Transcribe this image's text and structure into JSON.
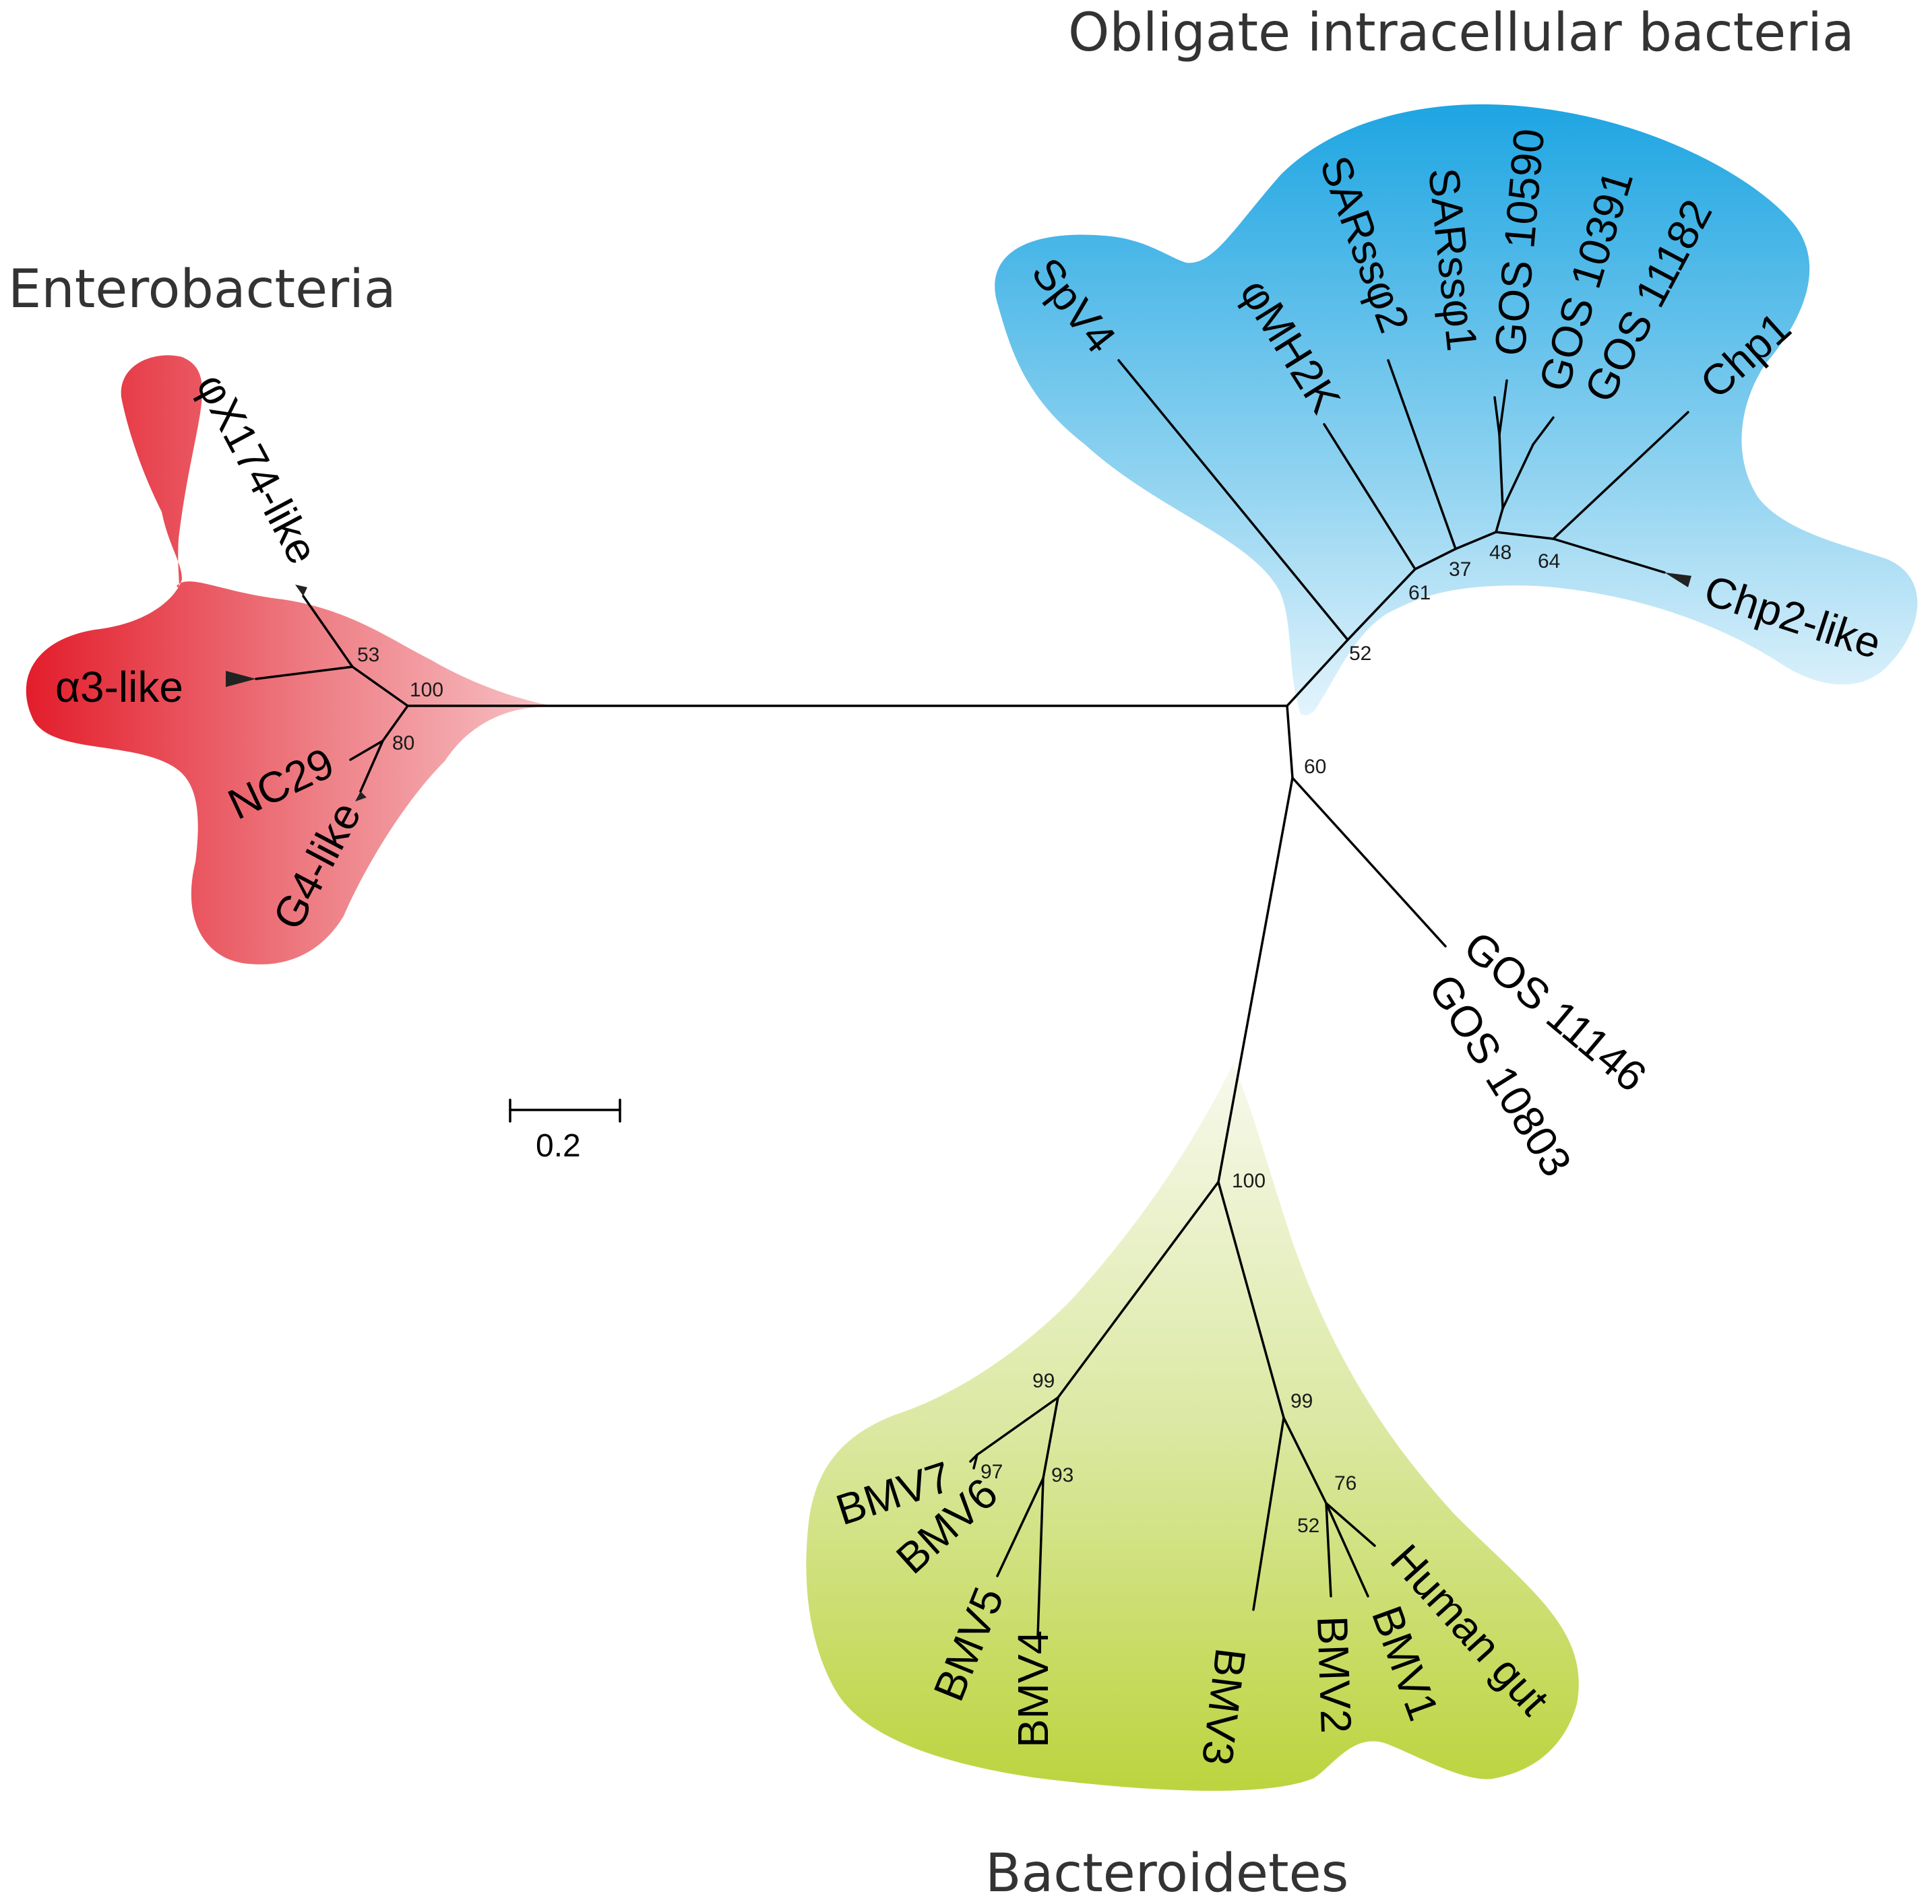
{
  "groups": {
    "enterobacteria": {
      "title": "Enterobacteria",
      "color": "#e8202e"
    },
    "obligate": {
      "title": "Obligate intracellular bacteria",
      "color": "#22a8e2"
    },
    "bacteroidetes": {
      "title": "Bacteroidetes",
      "color": "#bcd43e"
    }
  },
  "leaves": {
    "phix174": "φX174-like",
    "alpha3": "α3-like",
    "nc29": "NC29",
    "g4": "G4-like",
    "spv4": "SpV4",
    "phimh2k": "φMH2K",
    "sarss2": "SARssφ2",
    "sarss1": "SARssφ1",
    "gos10590": "GOS 10590",
    "gos10391": "GOS 10391",
    "gos11182": "GOS 11182",
    "chp1": "Chp1",
    "chp2": "Chp2-like",
    "gos11146": "GOS 11146",
    "gos10803": "GOS 10803",
    "bmv7": "BMV7",
    "bmv6": "BMV6",
    "bmv5": "BMV5",
    "bmv4": "BMV4",
    "bmv3": "BMV3",
    "bmv2": "BMV2",
    "bmv1": "BMV1",
    "humangut": "Human gut"
  },
  "support": {
    "s53": "53",
    "s100a": "100",
    "s80": "80",
    "s52a": "52",
    "s61": "61",
    "s37": "37",
    "s48": "48",
    "s64": "64",
    "s60": "60",
    "s100b": "100",
    "s99a": "99",
    "s99b": "99",
    "s97": "97",
    "s93": "93",
    "s76": "76",
    "s52b": "52"
  },
  "scale_bar": {
    "label": "0.2"
  }
}
